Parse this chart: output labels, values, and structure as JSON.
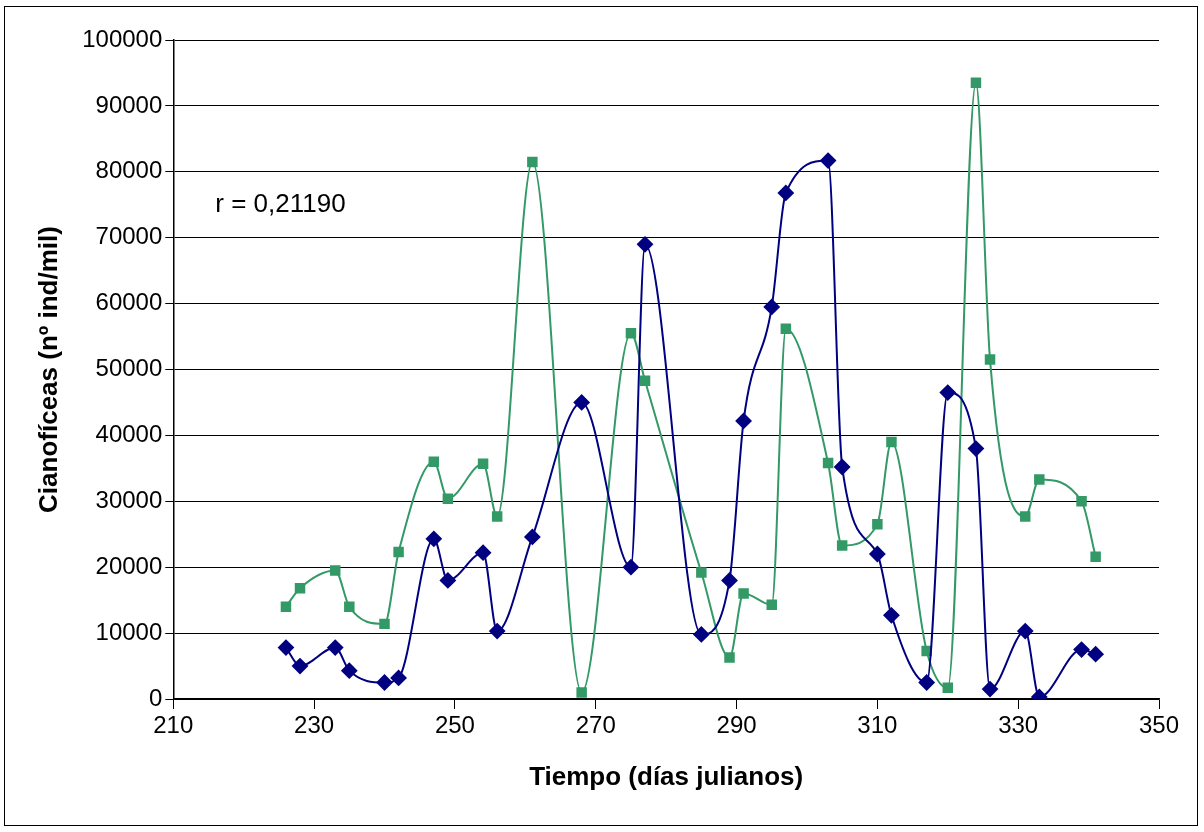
{
  "chart_data": {
    "type": "line",
    "xlabel": "Tiempo (días julianos)",
    "ylabel": "Cianofíceas (nº ind/mil)",
    "annotations": [
      "r = 0,21190"
    ],
    "x": [
      226,
      228,
      233,
      235,
      240,
      242,
      247,
      249,
      254,
      256,
      261,
      268,
      275,
      277,
      285,
      289,
      291,
      295,
      297,
      303,
      305,
      310,
      312,
      317,
      320,
      324,
      326,
      331,
      333,
      339,
      341
    ],
    "series": [
      {
        "color": "#000080",
        "marker": "diamond",
        "values": [
          7800,
          5000,
          7800,
          4300,
          2500,
          3200,
          24300,
          18000,
          22200,
          10300,
          24600,
          45000,
          20000,
          69000,
          9800,
          18000,
          42200,
          59500,
          76800,
          81700,
          35200,
          22000,
          12700,
          2500,
          46500,
          38000,
          1500,
          10300,
          300,
          7500,
          6800
        ]
      },
      {
        "color": "#339966",
        "marker": "square",
        "values": [
          14000,
          16800,
          19500,
          14000,
          11400,
          22300,
          36000,
          30400,
          35700,
          27700,
          81500,
          1000,
          55500,
          48300,
          19200,
          6300,
          16000,
          14300,
          56200,
          35800,
          23300,
          26500,
          39000,
          7300,
          1700,
          93500,
          51500,
          27700,
          33300,
          30000,
          21600
        ]
      }
    ],
    "xlim": [
      210,
      350
    ],
    "xticks": [
      210,
      230,
      250,
      270,
      290,
      310,
      330,
      350
    ],
    "ylim": [
      0,
      100000
    ],
    "yticks": [
      0,
      10000,
      20000,
      30000,
      40000,
      50000,
      60000,
      70000,
      80000,
      90000,
      100000
    ],
    "grid": "y",
    "legend": false,
    "line_style": "solid"
  }
}
